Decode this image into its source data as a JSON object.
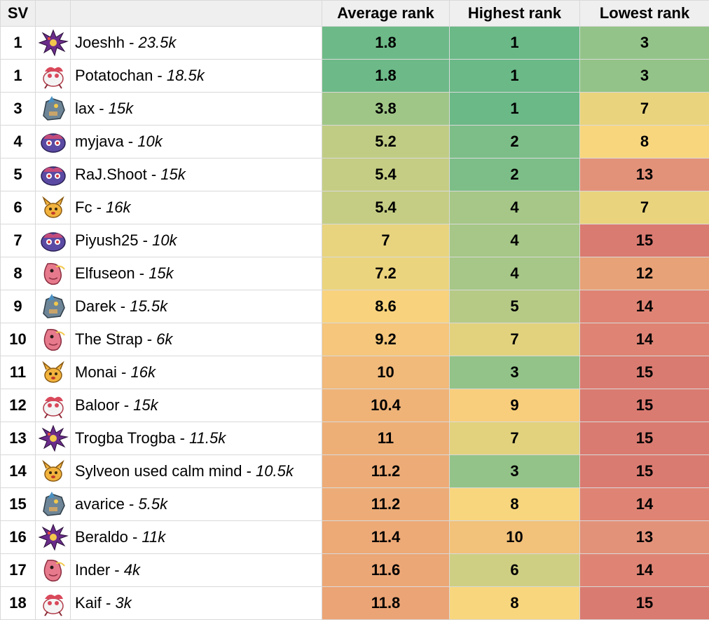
{
  "table": {
    "headers": {
      "sv": "SV",
      "icon": "",
      "player": "",
      "avg": "Average rank",
      "high": "Highest rank",
      "low": "Lowest rank"
    },
    "colors": {
      "header_bg": "#efefef",
      "grid": "#d9d9d9",
      "scale_green_dark": "#6fbb8a",
      "scale_green": "#97c488",
      "scale_yellow_green": "#c4cc83",
      "scale_yellow": "#f6d57e",
      "scale_orange": "#f0ab77",
      "scale_red": "#de7d72"
    },
    "rows": [
      {
        "sv": "1",
        "icon": "spiky-purple-sprite",
        "name": "Joeshh",
        "sep": " - ",
        "elo": "23.5k",
        "avg": "1.8",
        "high": "1",
        "low": "3",
        "avg_color": "#6dba88",
        "high_color": "#6ab987",
        "low_color": "#93c388"
      },
      {
        "sv": "1",
        "icon": "pink-bird-sprite",
        "name": "Potatochan",
        "sep": " - ",
        "elo": "18.5k",
        "avg": "1.8",
        "high": "1",
        "low": "3",
        "avg_color": "#6dba88",
        "high_color": "#6ab987",
        "low_color": "#93c388"
      },
      {
        "sv": "3",
        "icon": "gray-beast-sprite",
        "name": "lax",
        "sep": " - ",
        "elo": "15k",
        "avg": "3.8",
        "high": "1",
        "low": "7",
        "avg_color": "#9fc687",
        "high_color": "#6ab987",
        "low_color": "#e9d47d"
      },
      {
        "sv": "4",
        "icon": "purple-blob-sprite",
        "name": "myjava",
        "sep": " - ",
        "elo": "10k",
        "avg": "5.2",
        "high": "2",
        "low": "8",
        "avg_color": "#c0cc84",
        "high_color": "#7dbe88",
        "low_color": "#f8d67d"
      },
      {
        "sv": "5",
        "icon": "purple-blob-sprite",
        "name": "RaJ.Shoot",
        "sep": " - ",
        "elo": "15k",
        "avg": "5.4",
        "high": "2",
        "low": "13",
        "avg_color": "#c5cd84",
        "high_color": "#7dbe88",
        "low_color": "#e3927a"
      },
      {
        "sv": "6",
        "icon": "yellow-critter-sprite",
        "name": "Fc",
        "sep": " - ",
        "elo": "16k",
        "avg": "5.4",
        "high": "4",
        "low": "7",
        "avg_color": "#c5cd84",
        "high_color": "#a6c787",
        "low_color": "#e9d47d"
      },
      {
        "sv": "7",
        "icon": "purple-blob-sprite",
        "name": "Piyush25",
        "sep": " - ",
        "elo": "10k",
        "avg": "7",
        "high": "4",
        "low": "15",
        "avg_color": "#e8d47e",
        "high_color": "#a6c787",
        "low_color": "#da7b71"
      },
      {
        "sv": "8",
        "icon": "pink-fish-sprite",
        "name": "Elfuseon",
        "sep": " - ",
        "elo": "15k",
        "avg": "7.2",
        "high": "4",
        "low": "12",
        "avg_color": "#ebd47e",
        "high_color": "#a6c787",
        "low_color": "#e8a277"
      },
      {
        "sv": "9",
        "icon": "gray-beast-sprite",
        "name": "Darek",
        "sep": " - ",
        "elo": "15.5k",
        "avg": "8.6",
        "high": "5",
        "low": "14",
        "avg_color": "#f8d27d",
        "high_color": "#b6ca86",
        "low_color": "#df8474"
      },
      {
        "sv": "10",
        "icon": "pink-fish-sprite",
        "name": "The Strap",
        "sep": " - ",
        "elo": "6k",
        "avg": "9.2",
        "high": "7",
        "low": "14",
        "avg_color": "#f5c67c",
        "high_color": "#e2d27d",
        "low_color": "#df8474"
      },
      {
        "sv": "11",
        "icon": "yellow-critter-sprite",
        "name": "Monai",
        "sep": " - ",
        "elo": "16k",
        "avg": "10",
        "high": "3",
        "low": "15",
        "avg_color": "#f1b97a",
        "high_color": "#93c388",
        "low_color": "#da7b71"
      },
      {
        "sv": "12",
        "icon": "pink-bird-sprite",
        "name": "Baloor",
        "sep": " - ",
        "elo": "15k",
        "avg": "10.4",
        "high": "9",
        "low": "15",
        "avg_color": "#efb378",
        "high_color": "#f8ce7c",
        "low_color": "#da7b71"
      },
      {
        "sv": "13",
        "icon": "spiky-purple-sprite",
        "name": "Trogba Trogba",
        "sep": " - ",
        "elo": "11.5k",
        "avg": "11",
        "high": "7",
        "low": "15",
        "avg_color": "#eeaf77",
        "high_color": "#e2d27d",
        "low_color": "#da7b71"
      },
      {
        "sv": "14",
        "icon": "yellow-critter-sprite",
        "name": "Sylveon used calm mind",
        "sep": " - ",
        "elo": "10.5k",
        "avg": "11.2",
        "high": "3",
        "low": "15",
        "avg_color": "#edac77",
        "high_color": "#93c388",
        "low_color": "#da7b71"
      },
      {
        "sv": "15",
        "icon": "gray-beast-sprite",
        "name": "avarice",
        "sep": " - ",
        "elo": "5.5k",
        "avg": "11.2",
        "high": "8",
        "low": "14",
        "avg_color": "#edac77",
        "high_color": "#f8d67d",
        "low_color": "#df8474"
      },
      {
        "sv": "16",
        "icon": "spiky-purple-sprite",
        "name": "Beraldo",
        "sep": " - ",
        "elo": "11k",
        "avg": "11.4",
        "high": "10",
        "low": "13",
        "avg_color": "#eda976",
        "high_color": "#f2c17a",
        "low_color": "#e3927a"
      },
      {
        "sv": "17",
        "icon": "pink-fish-sprite",
        "name": "Inder",
        "sep": " - ",
        "elo": "4k",
        "avg": "11.6",
        "high": "6",
        "low": "14",
        "avg_color": "#eca776",
        "high_color": "#cfcf84",
        "low_color": "#df8474"
      },
      {
        "sv": "18",
        "icon": "pink-bird-sprite",
        "name": "Kaif",
        "sep": " - ",
        "elo": "3k",
        "avg": "11.8",
        "high": "8",
        "low": "15",
        "avg_color": "#eba475",
        "high_color": "#f8d67d",
        "low_color": "#da7b71"
      }
    ]
  }
}
